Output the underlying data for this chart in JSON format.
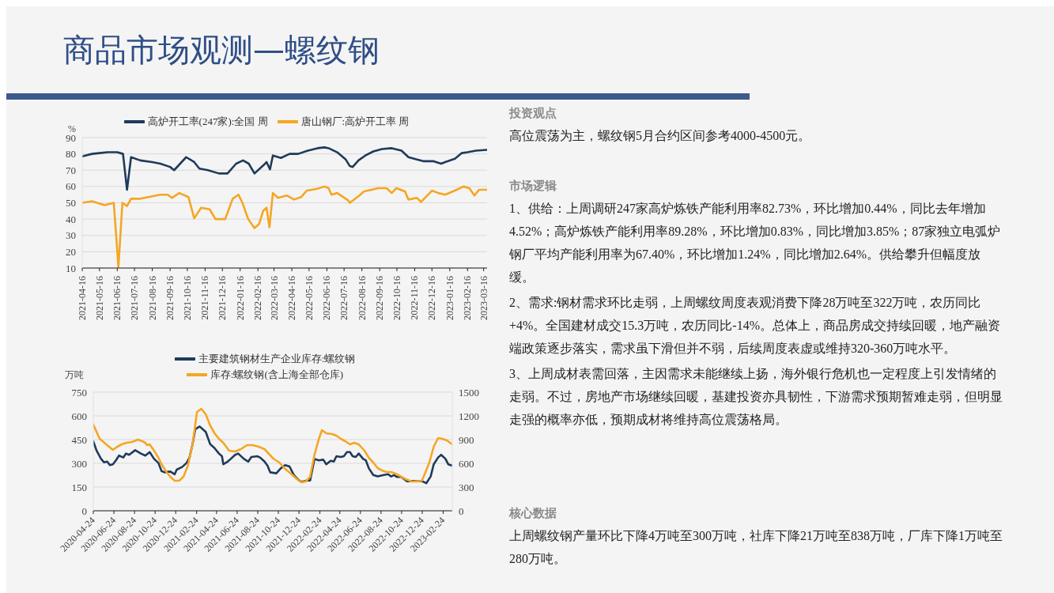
{
  "chart_data": [
    {
      "type": "other",
      "title": "商品市场观测—螺纹钢"
    },
    {
      "type": "line",
      "ylabel": "%",
      "legend": "top",
      "grid": "y",
      "xlim": [
        "2021-04-16",
        "2023-03-22"
      ],
      "ylim": [
        10,
        90
      ],
      "yticks": [
        10,
        20,
        30,
        40,
        50,
        60,
        70,
        80,
        90
      ],
      "xticks": [
        "2021-04-16",
        "2021-05-16",
        "2021-06-16",
        "2021-07-16",
        "2021-08-16",
        "2021-09-16",
        "2021-10-16",
        "2021-11-16",
        "2021-12-16",
        "2022-01-16",
        "2022-02-16",
        "2022-03-16",
        "2022-04-16",
        "2022-05-16",
        "2022-06-16",
        "2022-07-16",
        "2022-08-16",
        "2022-09-16",
        "2022-10-16",
        "2022-11-16",
        "2022-12-16",
        "2023-01-16",
        "2023-02-16",
        "2023-03-16"
      ],
      "series": [
        {
          "name": "高炉开工率(247家):全国 周",
          "color": "#1f3a5a",
          "x": [
            "2021-04-16",
            "2021-05-03",
            "2021-05-16",
            "2021-05-30",
            "2021-06-16",
            "2021-06-26",
            "2021-07-03",
            "2021-07-10",
            "2021-07-26",
            "2021-08-16",
            "2021-08-30",
            "2021-09-16",
            "2021-09-23",
            "2021-10-14",
            "2021-10-28",
            "2021-11-06",
            "2021-11-21",
            "2021-12-10",
            "2021-12-25",
            "2022-01-09",
            "2022-01-21",
            "2022-01-31",
            "2022-02-10",
            "2022-02-27",
            "2022-03-03",
            "2022-03-09",
            "2022-03-14",
            "2022-03-28",
            "2022-04-12",
            "2022-04-27",
            "2022-05-14",
            "2022-05-31",
            "2022-06-12",
            "2022-06-19",
            "2022-07-04",
            "2022-07-19",
            "2022-07-26",
            "2022-07-31",
            "2022-08-10",
            "2022-08-22",
            "2022-09-05",
            "2022-09-20",
            "2022-10-07",
            "2022-10-24",
            "2022-11-05",
            "2022-11-20",
            "2022-12-02",
            "2022-12-19",
            "2023-01-01",
            "2023-01-08",
            "2023-01-25",
            "2023-02-06",
            "2023-02-16",
            "2023-03-03",
            "2023-03-22"
          ],
          "values": [
            78.5,
            80,
            80.5,
            81,
            81,
            80,
            58,
            78,
            76,
            75,
            74,
            72,
            70,
            78,
            75,
            71,
            70,
            68,
            68,
            74,
            76,
            74,
            68,
            73.5,
            75,
            70.5,
            79,
            77.5,
            80,
            80,
            82,
            83.5,
            84,
            83.5,
            81,
            76.5,
            72.5,
            72,
            76,
            79,
            81.5,
            83,
            83.5,
            82,
            78,
            76.5,
            75.5,
            75.5,
            74,
            75,
            77,
            80.5,
            81,
            82,
            82.5
          ]
        },
        {
          "name": "唐山钢厂:高炉开工率 周",
          "color": "#f5a623",
          "x": [
            "2021-04-16",
            "2021-05-03",
            "2021-05-25",
            "2021-06-10",
            "2021-06-18",
            "2021-06-25",
            "2021-07-03",
            "2021-07-10",
            "2021-07-26",
            "2021-08-16",
            "2021-08-30",
            "2021-09-12",
            "2021-09-19",
            "2021-10-02",
            "2021-10-18",
            "2021-10-28",
            "2021-11-09",
            "2021-11-24",
            "2021-12-04",
            "2021-12-21",
            "2022-01-03",
            "2022-01-13",
            "2022-01-20",
            "2022-01-30",
            "2022-02-10",
            "2022-02-18",
            "2022-02-25",
            "2022-03-03",
            "2022-03-08",
            "2022-03-14",
            "2022-03-23",
            "2022-04-07",
            "2022-04-20",
            "2022-05-02",
            "2022-05-12",
            "2022-05-29",
            "2022-06-12",
            "2022-06-19",
            "2022-06-24",
            "2022-07-04",
            "2022-07-23",
            "2022-07-26",
            "2022-08-10",
            "2022-08-20",
            "2022-09-02",
            "2022-09-13",
            "2022-09-28",
            "2022-10-07",
            "2022-10-15",
            "2022-10-30",
            "2022-11-05",
            "2022-11-20",
            "2022-11-27",
            "2022-12-16",
            "2022-12-27",
            "2023-01-08",
            "2023-01-25",
            "2023-02-09",
            "2023-02-19",
            "2023-02-28",
            "2023-03-08",
            "2023-03-22"
          ],
          "values": [
            50,
            51,
            48.5,
            50,
            10.5,
            50,
            48,
            52.5,
            52.5,
            54,
            55,
            55,
            53,
            56,
            53.5,
            40.5,
            47,
            46,
            40,
            40,
            52.5,
            55,
            50,
            40,
            34.5,
            37,
            45,
            47,
            35,
            56,
            53,
            54.5,
            52,
            53.5,
            57.5,
            58.5,
            60,
            59,
            55,
            56,
            51.5,
            50,
            54,
            57,
            58,
            59,
            59,
            56,
            59,
            57,
            52,
            53,
            50.5,
            57.5,
            56,
            55,
            57.5,
            60,
            59,
            54.5,
            58,
            58
          ]
        }
      ]
    },
    {
      "type": "line",
      "ylabel": "万吨",
      "legend": "top",
      "grid": "y",
      "xlim": [
        "2020-04-24",
        "2023-03-23"
      ],
      "ylim": [
        0,
        750
      ],
      "yticks": [
        0,
        150,
        300,
        450,
        600,
        750
      ],
      "y2lim": [
        0,
        1500
      ],
      "y2ticks": [
        0,
        300,
        600,
        900,
        1200,
        1500
      ],
      "xticks": [
        "2020-04-24",
        "2020-06-24",
        "2020-08-24",
        "2020-10-24",
        "2020-12-24",
        "2021-02-24",
        "2021-04-24",
        "2021-06-24",
        "2021-08-24",
        "2021-10-24",
        "2021-12-24",
        "2022-02-24",
        "2022-04-24",
        "2022-06-24",
        "2022-08-24",
        "2022-10-24",
        "2022-12-24",
        "2023-02-24"
      ],
      "series": [
        {
          "name": "主要建筑钢材生产企业库存:螺纹钢",
          "color": "#1f3a5a",
          "x": [
            "2020-04-24",
            "2020-05-04",
            "2020-05-17",
            "2020-05-26",
            "2020-06-04",
            "2020-06-12",
            "2020-06-21",
            "2020-06-30",
            "2020-07-09",
            "2020-07-22",
            "2020-07-30",
            "2020-08-08",
            "2020-08-26",
            "2020-09-12",
            "2020-09-25",
            "2020-10-08",
            "2020-10-21",
            "2020-11-03",
            "2020-11-12",
            "2020-11-21",
            "2020-12-08",
            "2020-12-21",
            "2020-12-27",
            "2021-01-12",
            "2021-01-25",
            "2021-02-03",
            "2021-02-12",
            "2021-02-20",
            "2021-03-05",
            "2021-03-23",
            "2021-04-05",
            "2021-04-18",
            "2021-05-01",
            "2021-05-10",
            "2021-05-14",
            "2021-05-27",
            "2021-06-05",
            "2021-06-18",
            "2021-06-27",
            "2021-07-14",
            "2021-07-27",
            "2021-08-05",
            "2021-08-22",
            "2021-08-31",
            "2021-09-13",
            "2021-09-22",
            "2021-09-30",
            "2021-10-18",
            "2021-10-31",
            "2021-11-13",
            "2021-11-26",
            "2021-12-09",
            "2021-12-22",
            "2021-12-31",
            "2022-01-17",
            "2022-01-26",
            "2022-02-08",
            "2022-02-21",
            "2022-03-06",
            "2022-03-15",
            "2022-03-28",
            "2022-04-06",
            "2022-04-14",
            "2022-04-27",
            "2022-05-06",
            "2022-05-15",
            "2022-05-24",
            "2022-06-01",
            "2022-06-10",
            "2022-06-19",
            "2022-07-02",
            "2022-07-10",
            "2022-07-19",
            "2022-08-01",
            "2022-08-14",
            "2022-09-01",
            "2022-09-14",
            "2022-09-23",
            "2022-10-01",
            "2022-10-10",
            "2022-10-23",
            "2022-11-09",
            "2022-11-27",
            "2022-12-10",
            "2022-12-23",
            "2023-01-05",
            "2023-01-18",
            "2023-01-27",
            "2023-02-09",
            "2023-02-18",
            "2023-03-03",
            "2023-03-11",
            "2023-03-23"
          ],
          "values": [
            439,
            379,
            328,
            306,
            311,
            289,
            294,
            319,
            349,
            337,
            362,
            354,
            383,
            362,
            349,
            371,
            328,
            302,
            251,
            243,
            248,
            231,
            260,
            277,
            302,
            337,
            422,
            516,
            533,
            499,
            422,
            396,
            362,
            345,
            294,
            311,
            328,
            354,
            362,
            328,
            311,
            340,
            345,
            337,
            311,
            285,
            243,
            237,
            268,
            289,
            280,
            226,
            196,
            183,
            191,
            191,
            328,
            319,
            323,
            294,
            316,
            311,
            345,
            340,
            345,
            371,
            371,
            345,
            340,
            362,
            328,
            319,
            268,
            226,
            217,
            226,
            231,
            217,
            226,
            214,
            214,
            186,
            188,
            186,
            188,
            174,
            217,
            294,
            337,
            354,
            328,
            294,
            285
          ]
        },
        {
          "name": "库存:螺纹钢(含上海全部仓库)",
          "color": "#f5a623",
          "axis": "y2",
          "x": [
            "2020-04-24",
            "2020-05-13",
            "2020-06-04",
            "2020-06-21",
            "2020-07-04",
            "2020-07-17",
            "2020-07-31",
            "2020-08-17",
            "2020-09-03",
            "2020-09-16",
            "2020-09-25",
            "2020-09-30",
            "2020-10-08",
            "2020-10-21",
            "2020-11-03",
            "2020-11-12",
            "2020-11-25",
            "2020-12-08",
            "2020-12-21",
            "2021-01-03",
            "2021-01-16",
            "2021-01-29",
            "2021-02-12",
            "2021-02-25",
            "2021-03-10",
            "2021-03-23",
            "2021-04-05",
            "2021-04-18",
            "2021-05-01",
            "2021-05-14",
            "2021-05-31",
            "2021-06-18",
            "2021-07-05",
            "2021-07-23",
            "2021-08-09",
            "2021-08-27",
            "2021-09-13",
            "2021-09-26",
            "2021-10-09",
            "2021-10-27",
            "2021-11-13",
            "2021-11-30",
            "2021-12-18",
            "2021-12-31",
            "2022-01-13",
            "2022-01-26",
            "2022-02-08",
            "2022-02-21",
            "2022-03-02",
            "2022-03-15",
            "2022-04-01",
            "2022-04-14",
            "2022-04-27",
            "2022-05-10",
            "2022-05-24",
            "2022-06-06",
            "2022-06-19",
            "2022-07-06",
            "2022-07-19",
            "2022-08-01",
            "2022-08-14",
            "2022-08-27",
            "2022-09-09",
            "2022-09-23",
            "2022-10-06",
            "2022-10-19",
            "2022-11-05",
            "2022-11-23",
            "2022-12-10",
            "2022-12-23",
            "2023-01-01",
            "2023-01-14",
            "2023-01-27",
            "2023-02-09",
            "2023-02-22",
            "2023-03-07",
            "2023-03-23"
          ],
          "values": [
            1090,
            910,
            830,
            770,
            810,
            840,
            860,
            870,
            900,
            880,
            860,
            830,
            840,
            760,
            670,
            590,
            500,
            430,
            380,
            380,
            430,
            570,
            840,
            1250,
            1290,
            1220,
            1080,
            980,
            910,
            860,
            760,
            750,
            780,
            830,
            830,
            810,
            780,
            720,
            660,
            610,
            530,
            470,
            400,
            360,
            370,
            430,
            710,
            910,
            1020,
            980,
            970,
            950,
            910,
            880,
            840,
            860,
            840,
            760,
            670,
            610,
            540,
            510,
            490,
            490,
            470,
            440,
            400,
            370,
            370,
            380,
            470,
            610,
            810,
            920,
            910,
            890,
            840
          ]
        }
      ]
    },
    {
      "type": "other",
      "title": "投资观点",
      "annotations": [
        "高位震荡为主，螺纹钢5月合约区间参考4000-4500元。"
      ]
    },
    {
      "type": "other",
      "title": "市场逻辑",
      "annotations": [
        "1、供给：上周调研247家高炉炼铁产能利用率82.73%，环比增加0.44%，同比去年增加4.52%；高炉炼铁产能利用率89.28%，环比增加0.83%，同比增加3.85%；87家独立电弧炉钢厂平均产能利用率为67.40%，环比增加1.24%，同比增加2.64%。供给攀升但幅度放缓。",
        "2、需求:钢材需求环比走弱，上周螺纹周度表观消费下降28万吨至322万吨，农历同比+4%。全国建材成交15.3万吨，农历同比-14%。总体上，商品房成交持续回暖，地产融资端政策逐步落实，需求虽下滑但并不弱，后续周度表虚或维持320-360万吨水平。",
        "3、上周成材表需回落，主因需求未能继续上扬，海外银行危机也一定程度上引发情绪的走弱。不过，房地产市场继续回暖，基建投资亦具韧性，下游需求预期暂难走弱，但明显走强的概率亦低，预期成材将维持高位震荡格局。"
      ]
    },
    {
      "type": "other",
      "title": "核心数据",
      "annotations": [
        "上周螺纹钢产量环比下降4万吨至300万吨，社库下降21万吨至838万吨，厂库下降1万吨至280万吨。"
      ]
    }
  ]
}
